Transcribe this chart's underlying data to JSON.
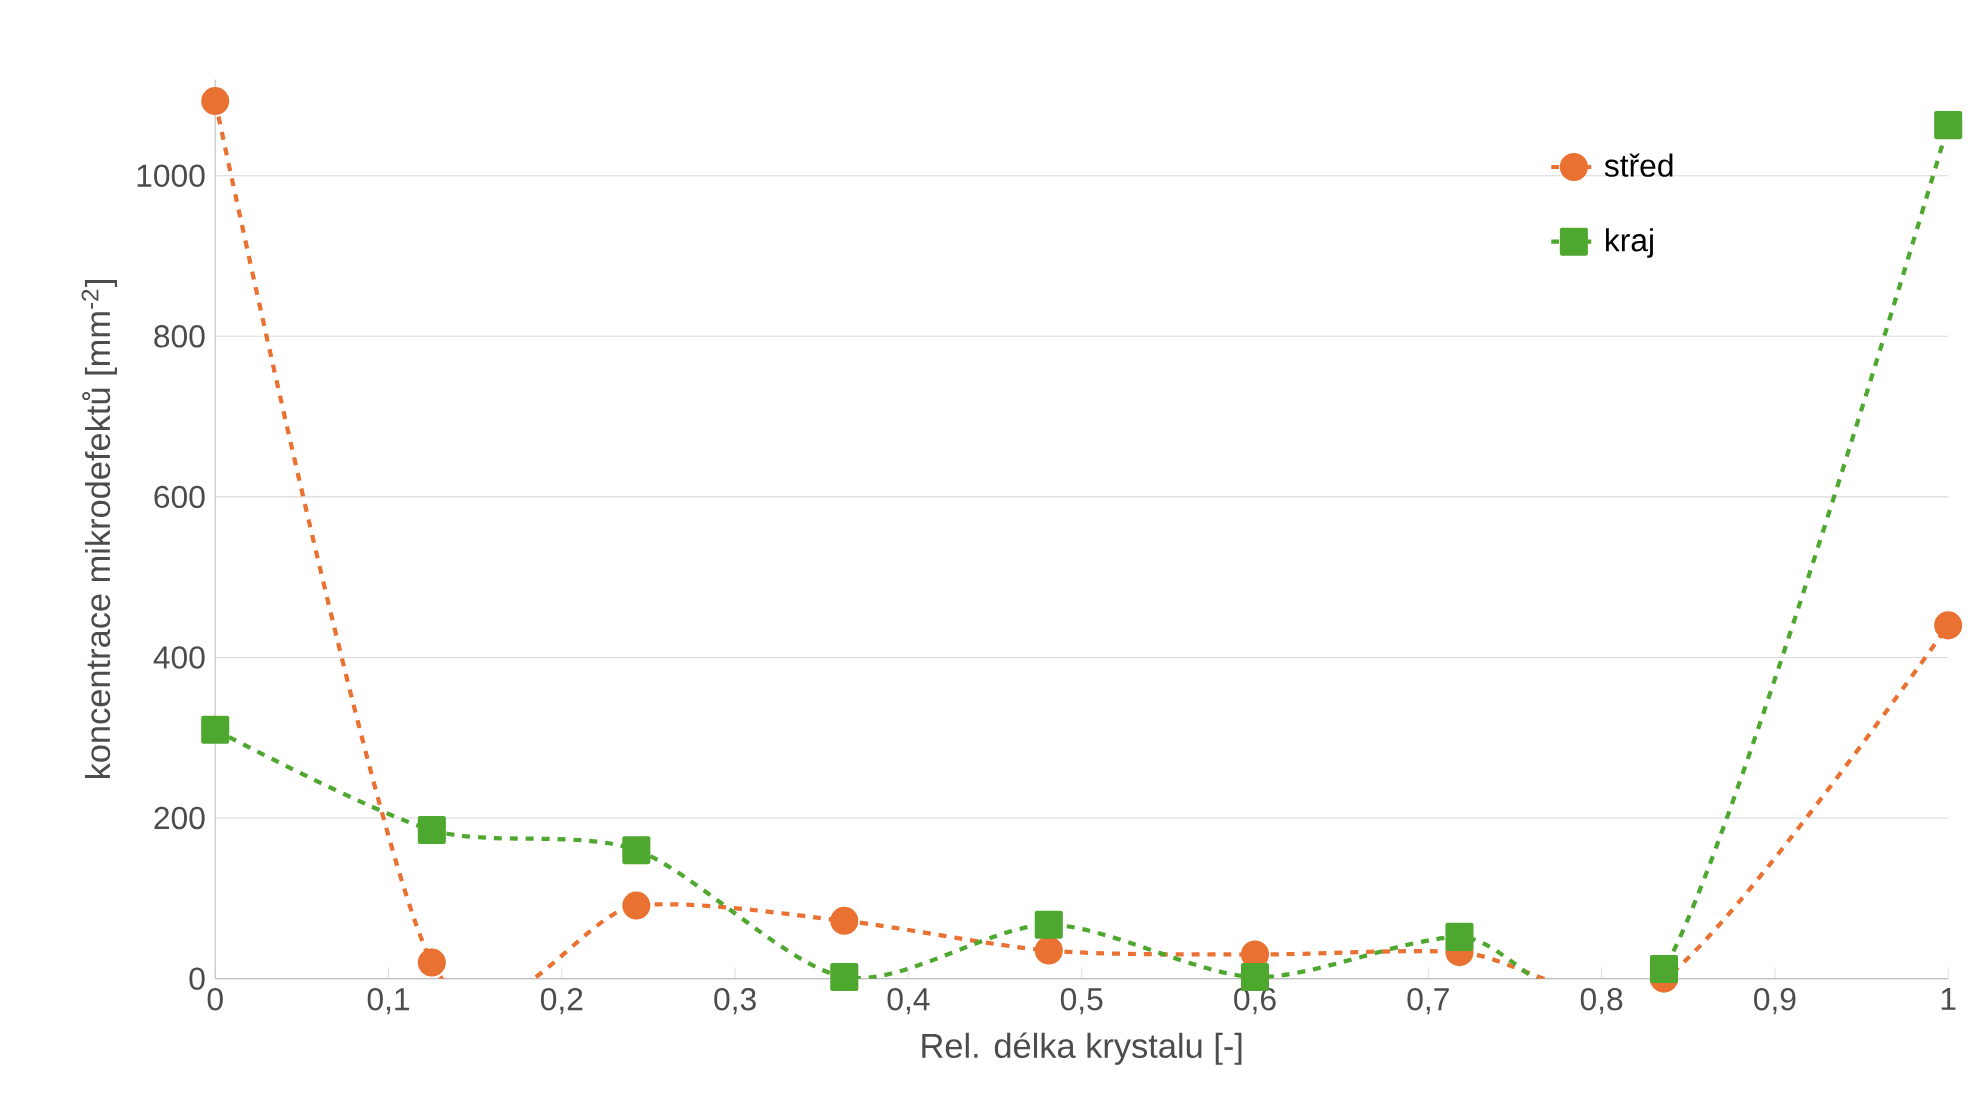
{
  "chart_data": {
    "type": "line",
    "xlabel": "Rel. délka krystalu [-]",
    "ylabel": "koncentrace mikrodefektů [mm$^{-2}$]",
    "x": [
      0,
      0.125,
      0.243,
      0.363,
      0.481,
      0.6,
      0.718,
      0.836,
      1
    ],
    "series": [
      {
        "name": "střed",
        "color": "#e97132",
        "marker": "circle",
        "values": [
          1093,
          20,
          91,
          72,
          35,
          30,
          33,
          0,
          440
        ]
      },
      {
        "name": "kraj",
        "color": "#4ea72e",
        "marker": "square",
        "values": [
          310,
          185,
          160,
          2,
          67,
          2,
          52,
          12,
          1063
        ]
      }
    ],
    "line_style": "dashed",
    "xlim": [
      0,
      1
    ],
    "ylim": [
      0,
      1120
    ],
    "xticks": [
      0,
      {
        "value": 0.1,
        "label": "0,1"
      },
      {
        "value": 0.2,
        "label": "0,2"
      },
      {
        "value": 0.3,
        "label": "0,3"
      },
      {
        "value": 0.4,
        "label": "0,4"
      },
      {
        "value": 0.5,
        "label": "0,5"
      },
      {
        "value": 0.6,
        "label": "0,6"
      },
      {
        "value": 0.7,
        "label": "0,7"
      },
      {
        "value": 0.8,
        "label": "0,8"
      },
      {
        "value": 0.9,
        "label": "0,9"
      },
      1
    ],
    "yticks": [
      0,
      200,
      400,
      600,
      800,
      1000
    ],
    "grid": "y",
    "legend": "top right"
  }
}
